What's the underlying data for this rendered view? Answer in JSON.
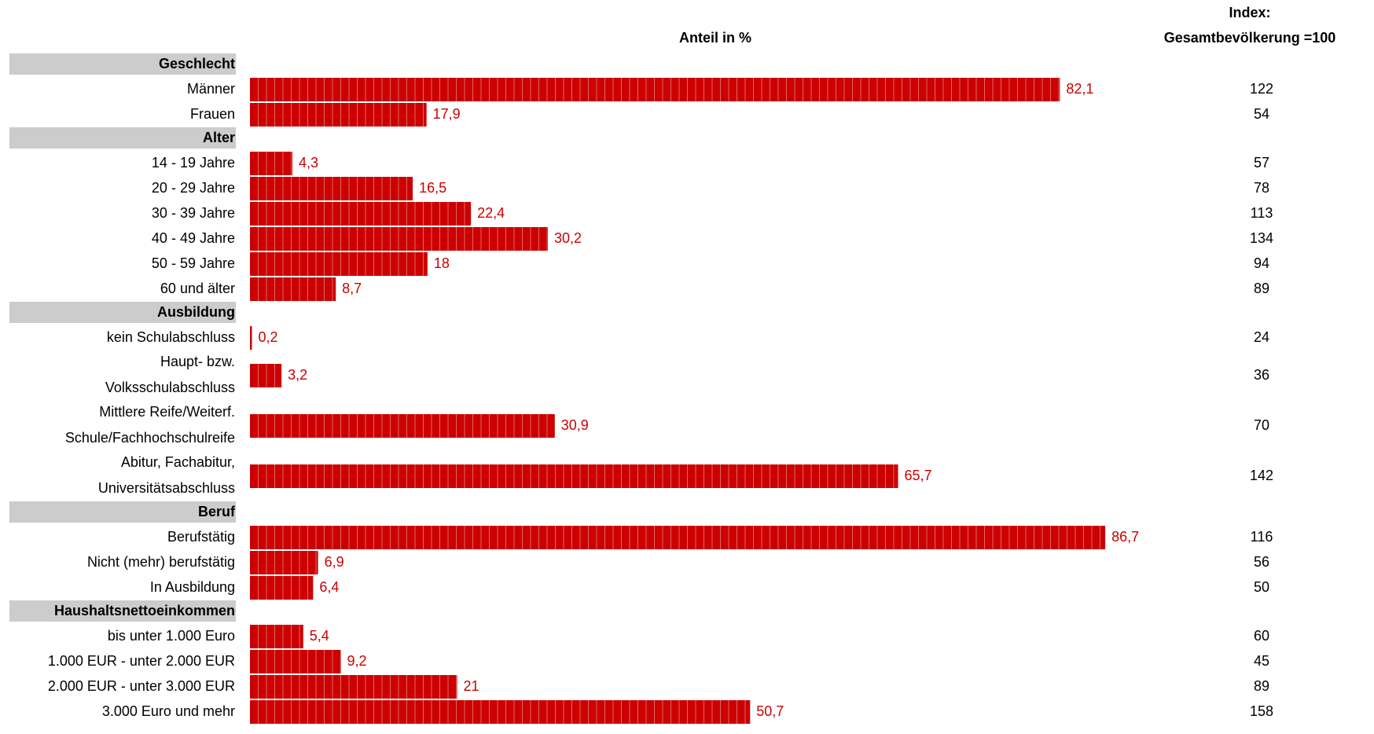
{
  "chart_data": {
    "type": "bar",
    "orientation": "horizontal",
    "value_header": "Anteil in %",
    "index_header_line1": "Index:",
    "index_header_line2": "Gesamtbevölkerung =100",
    "bar_color": "#cc0000",
    "section_color": "#cccccc",
    "rows": [
      {
        "kind": "section",
        "label": "Geschlecht"
      },
      {
        "kind": "item",
        "label": [
          "Männer"
        ],
        "value": 82.1,
        "value_label": "82,1",
        "index": "122"
      },
      {
        "kind": "item",
        "label": [
          "Frauen"
        ],
        "value": 17.9,
        "value_label": "17,9",
        "index": "54"
      },
      {
        "kind": "section",
        "label": "Alter"
      },
      {
        "kind": "item",
        "label": [
          "14 - 19 Jahre"
        ],
        "value": 4.3,
        "value_label": "4,3",
        "index": "57"
      },
      {
        "kind": "item",
        "label": [
          "20 - 29 Jahre"
        ],
        "value": 16.5,
        "value_label": "16,5",
        "index": "78"
      },
      {
        "kind": "item",
        "label": [
          "30 - 39 Jahre"
        ],
        "value": 22.4,
        "value_label": "22,4",
        "index": "113"
      },
      {
        "kind": "item",
        "label": [
          "40 - 49 Jahre"
        ],
        "value": 30.2,
        "value_label": "30,2",
        "index": "134"
      },
      {
        "kind": "item",
        "label": [
          "50 - 59 Jahre"
        ],
        "value": 18,
        "value_label": "18",
        "index": "94"
      },
      {
        "kind": "item",
        "label": [
          "60  und älter"
        ],
        "value": 8.7,
        "value_label": "8,7",
        "index": "89"
      },
      {
        "kind": "section",
        "label": "Ausbildung"
      },
      {
        "kind": "item",
        "label": [
          "kein Schulabschluss"
        ],
        "value": 0.2,
        "value_label": "0,2",
        "index": "24"
      },
      {
        "kind": "item",
        "label": [
          "Haupt- bzw.",
          "Volksschulabschluss"
        ],
        "value": 3.2,
        "value_label": "3,2",
        "index": "36"
      },
      {
        "kind": "item",
        "label": [
          "Mittlere Reife/Weiterf.",
          "Schule/Fachhochschulreife"
        ],
        "value": 30.9,
        "value_label": "30,9",
        "index": "70"
      },
      {
        "kind": "item",
        "label": [
          "Abitur, Fachabitur,",
          "Universitätsabschluss"
        ],
        "value": 65.7,
        "value_label": "65,7",
        "index": "142"
      },
      {
        "kind": "section",
        "label": "Beruf"
      },
      {
        "kind": "item",
        "label": [
          "Berufstätig"
        ],
        "value": 86.7,
        "value_label": "86,7",
        "index": "116"
      },
      {
        "kind": "item",
        "label": [
          "Nicht (mehr) berufstätig"
        ],
        "value": 6.9,
        "value_label": "6,9",
        "index": "56"
      },
      {
        "kind": "item",
        "label": [
          "In Ausbildung"
        ],
        "value": 6.4,
        "value_label": "6,4",
        "index": "50"
      },
      {
        "kind": "section",
        "label": "Haushaltsnettoeinkommen"
      },
      {
        "kind": "item",
        "label": [
          "bis unter 1.000 Euro"
        ],
        "value": 5.4,
        "value_label": "5,4",
        "index": "60"
      },
      {
        "kind": "item",
        "label": [
          "1.000 EUR - unter 2.000 EUR"
        ],
        "value": 9.2,
        "value_label": "9,2",
        "index": "45"
      },
      {
        "kind": "item",
        "label": [
          "2.000 EUR - unter 3.000 EUR"
        ],
        "value": 21,
        "value_label": "21",
        "index": "89"
      },
      {
        "kind": "item",
        "label": [
          "3.000 Euro und mehr"
        ],
        "value": 50.7,
        "value_label": "50,7",
        "index": "158"
      }
    ]
  }
}
